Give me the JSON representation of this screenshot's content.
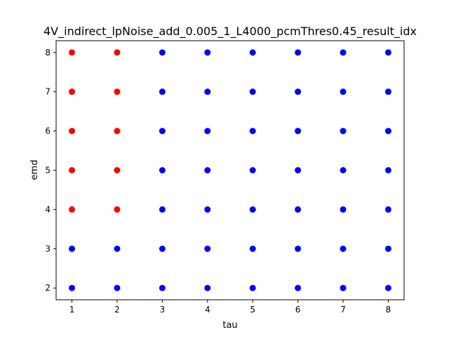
{
  "chart_data": {
    "type": "scatter",
    "title": "4V_indirect_lpNoise_add_0.005_1_L4000_pcmThres0.45_result_idx",
    "xlabel": "tau",
    "ylabel": "emd",
    "xlim": [
      0.65,
      8.35
    ],
    "ylim": [
      1.7,
      8.3
    ],
    "xticks": [
      1,
      2,
      3,
      4,
      5,
      6,
      7,
      8
    ],
    "yticks": [
      2,
      3,
      4,
      5,
      6,
      7,
      8
    ],
    "grid": false,
    "legend": "none",
    "colors": {
      "red": "#ff0000",
      "blue": "#0000ff"
    },
    "points": [
      {
        "x": 1,
        "y": 2,
        "color": "blue"
      },
      {
        "x": 1,
        "y": 3,
        "color": "blue"
      },
      {
        "x": 1,
        "y": 4,
        "color": "red"
      },
      {
        "x": 1,
        "y": 5,
        "color": "red"
      },
      {
        "x": 1,
        "y": 6,
        "color": "red"
      },
      {
        "x": 1,
        "y": 7,
        "color": "red"
      },
      {
        "x": 1,
        "y": 8,
        "color": "red"
      },
      {
        "x": 2,
        "y": 2,
        "color": "blue"
      },
      {
        "x": 2,
        "y": 3,
        "color": "blue"
      },
      {
        "x": 2,
        "y": 4,
        "color": "red"
      },
      {
        "x": 2,
        "y": 5,
        "color": "red"
      },
      {
        "x": 2,
        "y": 6,
        "color": "red"
      },
      {
        "x": 2,
        "y": 7,
        "color": "red"
      },
      {
        "x": 2,
        "y": 8,
        "color": "red"
      },
      {
        "x": 3,
        "y": 2,
        "color": "blue"
      },
      {
        "x": 3,
        "y": 3,
        "color": "blue"
      },
      {
        "x": 3,
        "y": 4,
        "color": "blue"
      },
      {
        "x": 3,
        "y": 5,
        "color": "blue"
      },
      {
        "x": 3,
        "y": 6,
        "color": "blue"
      },
      {
        "x": 3,
        "y": 7,
        "color": "blue"
      },
      {
        "x": 3,
        "y": 8,
        "color": "blue"
      },
      {
        "x": 4,
        "y": 2,
        "color": "blue"
      },
      {
        "x": 4,
        "y": 3,
        "color": "blue"
      },
      {
        "x": 4,
        "y": 4,
        "color": "blue"
      },
      {
        "x": 4,
        "y": 5,
        "color": "blue"
      },
      {
        "x": 4,
        "y": 6,
        "color": "blue"
      },
      {
        "x": 4,
        "y": 7,
        "color": "blue"
      },
      {
        "x": 4,
        "y": 8,
        "color": "blue"
      },
      {
        "x": 5,
        "y": 2,
        "color": "blue"
      },
      {
        "x": 5,
        "y": 3,
        "color": "blue"
      },
      {
        "x": 5,
        "y": 4,
        "color": "blue"
      },
      {
        "x": 5,
        "y": 5,
        "color": "blue"
      },
      {
        "x": 5,
        "y": 6,
        "color": "blue"
      },
      {
        "x": 5,
        "y": 7,
        "color": "blue"
      },
      {
        "x": 5,
        "y": 8,
        "color": "blue"
      },
      {
        "x": 6,
        "y": 2,
        "color": "blue"
      },
      {
        "x": 6,
        "y": 3,
        "color": "blue"
      },
      {
        "x": 6,
        "y": 4,
        "color": "blue"
      },
      {
        "x": 6,
        "y": 5,
        "color": "blue"
      },
      {
        "x": 6,
        "y": 6,
        "color": "blue"
      },
      {
        "x": 6,
        "y": 7,
        "color": "blue"
      },
      {
        "x": 6,
        "y": 8,
        "color": "blue"
      },
      {
        "x": 7,
        "y": 2,
        "color": "blue"
      },
      {
        "x": 7,
        "y": 3,
        "color": "blue"
      },
      {
        "x": 7,
        "y": 4,
        "color": "blue"
      },
      {
        "x": 7,
        "y": 5,
        "color": "blue"
      },
      {
        "x": 7,
        "y": 6,
        "color": "blue"
      },
      {
        "x": 7,
        "y": 7,
        "color": "blue"
      },
      {
        "x": 7,
        "y": 8,
        "color": "blue"
      },
      {
        "x": 8,
        "y": 2,
        "color": "blue"
      },
      {
        "x": 8,
        "y": 3,
        "color": "blue"
      },
      {
        "x": 8,
        "y": 4,
        "color": "blue"
      },
      {
        "x": 8,
        "y": 5,
        "color": "blue"
      },
      {
        "x": 8,
        "y": 6,
        "color": "blue"
      },
      {
        "x": 8,
        "y": 7,
        "color": "blue"
      },
      {
        "x": 8,
        "y": 8,
        "color": "blue"
      }
    ]
  }
}
